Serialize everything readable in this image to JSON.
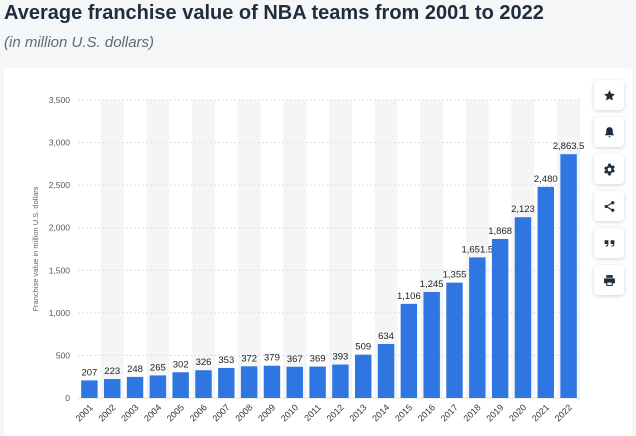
{
  "header": {
    "title": "Average franchise value of NBA teams from 2001 to 2022",
    "subtitle": "(in million U.S. dollars)"
  },
  "toolbar": {
    "icons": [
      "star-icon",
      "bell-icon",
      "gear-icon",
      "share-icon",
      "quote-icon",
      "print-icon"
    ]
  },
  "chart_data": {
    "type": "bar",
    "categories": [
      "2001",
      "2002",
      "2003",
      "2004",
      "2005",
      "2006",
      "2007",
      "2008",
      "2009",
      "2010",
      "2011",
      "2012",
      "2013",
      "2014",
      "2015",
      "2016",
      "2017",
      "2018",
      "2019",
      "2020",
      "2021",
      "2022"
    ],
    "values": [
      207,
      223,
      248,
      265,
      302,
      326,
      353,
      372,
      379,
      367,
      369,
      393,
      509,
      634,
      1106,
      1245,
      1355,
      1651.5,
      1868,
      2123,
      2480,
      2863.5
    ],
    "value_labels": [
      "207",
      "223",
      "248",
      "265",
      "302",
      "326",
      "353",
      "372",
      "379",
      "367",
      "369",
      "393",
      "509",
      "634",
      "1,106",
      "1,245",
      "1,355",
      "1,651.5",
      "1,868",
      "2,123",
      "2,480",
      "2,863.5"
    ],
    "ylabel": "Franchise value in million U.S. dollars",
    "ylim": [
      0,
      3500
    ],
    "yticks": [
      0,
      500,
      1000,
      1500,
      2000,
      2500,
      3000,
      3500
    ],
    "ytick_labels": [
      "0",
      "500",
      "1,000",
      "1,500",
      "2,000",
      "2,500",
      "3,000",
      "3,500"
    ],
    "grid": true,
    "bar_color": "#2f76e0"
  }
}
